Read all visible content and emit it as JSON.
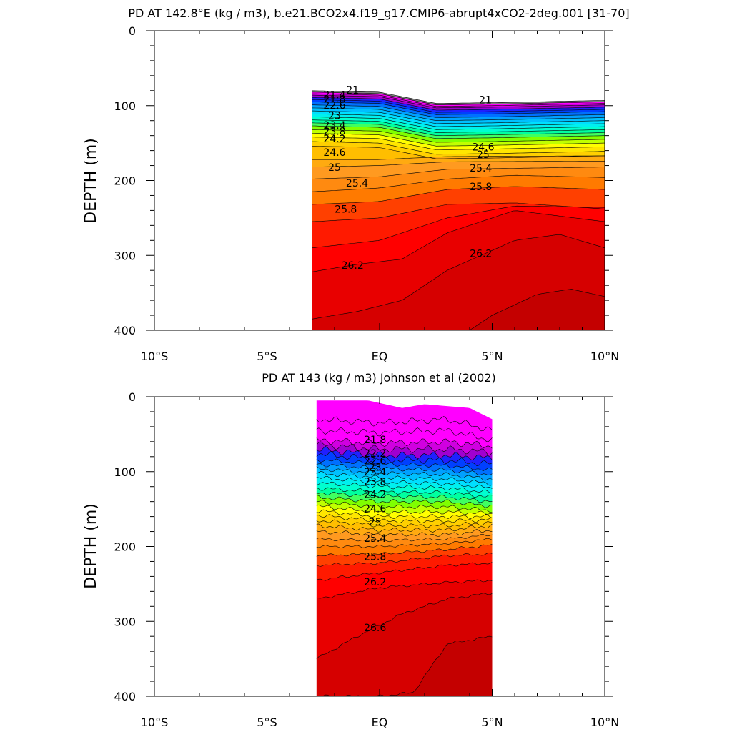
{
  "chart_data": [
    {
      "type": "contour",
      "title": "PD AT 142.8°E (kg / m3), b.e21.BCO2x4.f19_g17.CMIP6-abrupt4xCO2-2deg.001 [31-70]",
      "ylabel": "DEPTH (m)",
      "xlabel": "",
      "xlim": [
        -10,
        10
      ],
      "ylim": [
        400,
        0
      ],
      "x_data_extent": [
        -3,
        10
      ],
      "xticks": [
        -10,
        -5,
        0,
        5,
        10
      ],
      "xtick_labels": [
        "10°S",
        "5°S",
        "EQ",
        "5°N",
        "10°N"
      ],
      "yticks": [
        0,
        100,
        200,
        300,
        400
      ],
      "ytick_labels": [
        "0",
        "100",
        "200",
        "300",
        "400"
      ],
      "contour_labels": [
        "21",
        "21.4",
        "21.8",
        "22.6",
        "23",
        "23.4",
        "23.8",
        "24.2",
        "24.6",
        "25",
        "25.4",
        "25.8",
        "26.2"
      ],
      "contour_labels_right": [
        "21",
        "24.6",
        "25",
        "25.4",
        "25.8",
        "26.2"
      ],
      "grid": false
    },
    {
      "type": "contour",
      "title": "PD AT 143 (kg / m3) Johnson et al (2002)",
      "ylabel": "DEPTH (m)",
      "xlabel": "",
      "xlim": [
        -10,
        10
      ],
      "ylim": [
        400,
        0
      ],
      "x_data_extent": [
        -2.8,
        5
      ],
      "xticks": [
        -10,
        -5,
        0,
        5,
        10
      ],
      "xtick_labels": [
        "10°S",
        "5°S",
        "EQ",
        "5°N",
        "10°N"
      ],
      "yticks": [
        0,
        100,
        200,
        300,
        400
      ],
      "ytick_labels": [
        "0",
        "100",
        "200",
        "300",
        "400"
      ],
      "contour_labels": [
        "21.8",
        "22.2",
        "22.6",
        "23",
        "23.4",
        "23.8",
        "24.2",
        "24.6",
        "25",
        "25.4",
        "25.8",
        "26.2",
        "26.6"
      ],
      "grid": false
    }
  ],
  "colors": {
    "scale": [
      "#aaaaaa",
      "#7f7f7f",
      "#ff00ff",
      "#d000e0",
      "#a000d0",
      "#6000c8",
      "#2020ff",
      "#0040ff",
      "#0070ff",
      "#00a0ff",
      "#00c0ff",
      "#00dfff",
      "#00f0ef",
      "#00ffd0",
      "#00ffa0",
      "#40ff60",
      "#00ff00",
      "#80ff00",
      "#c0ff00",
      "#ffff00",
      "#ffe600",
      "#ffd000",
      "#ffbe00",
      "#ffaa10",
      "#ff9a20",
      "#ff8a10",
      "#ff7a00",
      "#ff6000",
      "#ff4000",
      "#ff1a00",
      "#ff0000",
      "#e80000",
      "#d60000",
      "#c40000"
    ]
  }
}
